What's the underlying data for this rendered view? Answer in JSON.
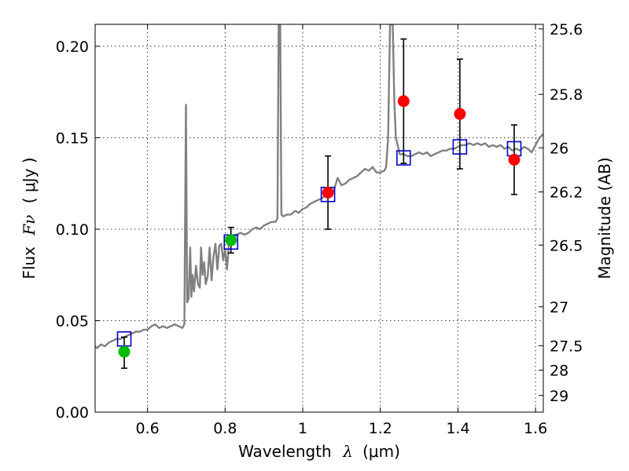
{
  "chart_data": {
    "type": "scatter",
    "xlabel_main": "Wavelength",
    "xlabel_symbol": "λ",
    "xlabel_unit": "(μm)",
    "ylabel_main": "Flux",
    "ylabel_symbol": "Fν",
    "ylabel_unit": "( μJy )",
    "ylabel_right": "Magnitude (AB)",
    "xlim": [
      0.465,
      1.62
    ],
    "ylim": [
      0.0,
      0.212
    ],
    "x_ticks": [
      0.6,
      0.8,
      1.0,
      1.2,
      1.4,
      1.6
    ],
    "x_tick_labels": [
      "0.6",
      "0.8",
      "1",
      "1.2",
      "1.4",
      "1.6"
    ],
    "y_ticks": [
      0.0,
      0.05,
      0.1,
      0.15,
      0.2
    ],
    "y_tick_labels": [
      "0.00",
      "0.05",
      "0.10",
      "0.15",
      "0.20"
    ],
    "right_ticks": [
      {
        "flux": 0.2095,
        "label": "25.6"
      },
      {
        "flux": 0.1737,
        "label": "25.8"
      },
      {
        "flux": 0.1445,
        "label": "26"
      },
      {
        "flux": 0.1204,
        "label": "26.2"
      },
      {
        "flux": 0.0913,
        "label": "26.5"
      },
      {
        "flux": 0.0576,
        "label": "27"
      },
      {
        "flux": 0.0363,
        "label": "27.5"
      },
      {
        "flux": 0.0229,
        "label": "28"
      },
      {
        "flux": 0.0091,
        "label": "29"
      }
    ],
    "grid": true,
    "colors": {
      "model": "#808080",
      "box": "#0000cc",
      "green": "#00bb00",
      "red": "#ff0000",
      "errorbar": "#000000"
    },
    "series": [
      {
        "name": "model spectrum",
        "style": "line",
        "points": [
          [
            0.465,
            0.036
          ],
          [
            0.47,
            0.035
          ],
          [
            0.48,
            0.037
          ],
          [
            0.49,
            0.036
          ],
          [
            0.5,
            0.038
          ],
          [
            0.51,
            0.039
          ],
          [
            0.52,
            0.04
          ],
          [
            0.53,
            0.04
          ],
          [
            0.54,
            0.041
          ],
          [
            0.55,
            0.042
          ],
          [
            0.56,
            0.043
          ],
          [
            0.57,
            0.044
          ],
          [
            0.58,
            0.044
          ],
          [
            0.59,
            0.045
          ],
          [
            0.6,
            0.045
          ],
          [
            0.61,
            0.047
          ],
          [
            0.62,
            0.048
          ],
          [
            0.63,
            0.046
          ],
          [
            0.64,
            0.047
          ],
          [
            0.65,
            0.046
          ],
          [
            0.66,
            0.047
          ],
          [
            0.67,
            0.048
          ],
          [
            0.68,
            0.047
          ],
          [
            0.69,
            0.046
          ],
          [
            0.695,
            0.048
          ],
          [
            0.699,
            0.168
          ],
          [
            0.702,
            0.06
          ],
          [
            0.706,
            0.062
          ],
          [
            0.71,
            0.09
          ],
          [
            0.713,
            0.063
          ],
          [
            0.716,
            0.075
          ],
          [
            0.72,
            0.066
          ],
          [
            0.725,
            0.08
          ],
          [
            0.73,
            0.07
          ],
          [
            0.735,
            0.068
          ],
          [
            0.738,
            0.09
          ],
          [
            0.742,
            0.075
          ],
          [
            0.746,
            0.082
          ],
          [
            0.75,
            0.07
          ],
          [
            0.755,
            0.074
          ],
          [
            0.76,
            0.09
          ],
          [
            0.765,
            0.072
          ],
          [
            0.77,
            0.085
          ],
          [
            0.775,
            0.092
          ],
          [
            0.78,
            0.078
          ],
          [
            0.785,
            0.091
          ],
          [
            0.79,
            0.092
          ],
          [
            0.795,
            0.083
          ],
          [
            0.8,
            0.089
          ],
          [
            0.805,
            0.078
          ],
          [
            0.81,
            0.094
          ],
          [
            0.815,
            0.092
          ],
          [
            0.82,
            0.095
          ],
          [
            0.83,
            0.097
          ],
          [
            0.84,
            0.098
          ],
          [
            0.85,
            0.097
          ],
          [
            0.86,
            0.098
          ],
          [
            0.87,
            0.1
          ],
          [
            0.88,
            0.101
          ],
          [
            0.89,
            0.1
          ],
          [
            0.9,
            0.102
          ],
          [
            0.91,
            0.103
          ],
          [
            0.92,
            0.104
          ],
          [
            0.93,
            0.104
          ],
          [
            0.935,
            0.106
          ],
          [
            0.938,
            0.212
          ],
          [
            0.942,
            0.212
          ],
          [
            0.945,
            0.108
          ],
          [
            0.95,
            0.107
          ],
          [
            0.96,
            0.108
          ],
          [
            0.97,
            0.108
          ],
          [
            0.98,
            0.11
          ],
          [
            0.99,
            0.109
          ],
          [
            1.0,
            0.111
          ],
          [
            1.01,
            0.112
          ],
          [
            1.02,
            0.114
          ],
          [
            1.03,
            0.115
          ],
          [
            1.04,
            0.116
          ],
          [
            1.05,
            0.117
          ],
          [
            1.06,
            0.119
          ],
          [
            1.07,
            0.12
          ],
          [
            1.08,
            0.121
          ],
          [
            1.09,
            0.128
          ],
          [
            1.1,
            0.124
          ],
          [
            1.11,
            0.125
          ],
          [
            1.12,
            0.127
          ],
          [
            1.13,
            0.128
          ],
          [
            1.14,
            0.129
          ],
          [
            1.15,
            0.131
          ],
          [
            1.16,
            0.133
          ],
          [
            1.17,
            0.132
          ],
          [
            1.18,
            0.134
          ],
          [
            1.19,
            0.131
          ],
          [
            1.2,
            0.131
          ],
          [
            1.21,
            0.132
          ],
          [
            1.215,
            0.134
          ],
          [
            1.22,
            0.15
          ],
          [
            1.225,
            0.212
          ],
          [
            1.232,
            0.212
          ],
          [
            1.236,
            0.17
          ],
          [
            1.24,
            0.15
          ],
          [
            1.25,
            0.141
          ],
          [
            1.26,
            0.141
          ],
          [
            1.27,
            0.14
          ],
          [
            1.28,
            0.14
          ],
          [
            1.29,
            0.141
          ],
          [
            1.3,
            0.142
          ],
          [
            1.31,
            0.141
          ],
          [
            1.32,
            0.142
          ],
          [
            1.33,
            0.14
          ],
          [
            1.34,
            0.141
          ],
          [
            1.35,
            0.142
          ],
          [
            1.36,
            0.143
          ],
          [
            1.37,
            0.143
          ],
          [
            1.38,
            0.144
          ],
          [
            1.39,
            0.144
          ],
          [
            1.4,
            0.145
          ],
          [
            1.41,
            0.146
          ],
          [
            1.42,
            0.146
          ],
          [
            1.43,
            0.147
          ],
          [
            1.44,
            0.146
          ],
          [
            1.45,
            0.147
          ],
          [
            1.46,
            0.146
          ],
          [
            1.47,
            0.147
          ],
          [
            1.48,
            0.145
          ],
          [
            1.49,
            0.146
          ],
          [
            1.5,
            0.145
          ],
          [
            1.51,
            0.146
          ],
          [
            1.52,
            0.144
          ],
          [
            1.53,
            0.145
          ],
          [
            1.54,
            0.143
          ],
          [
            1.55,
            0.144
          ],
          [
            1.56,
            0.143
          ],
          [
            1.57,
            0.145
          ],
          [
            1.58,
            0.144
          ],
          [
            1.59,
            0.142
          ],
          [
            1.6,
            0.146
          ],
          [
            1.61,
            0.15
          ],
          [
            1.62,
            0.152
          ]
        ]
      },
      {
        "name": "model synthetic photometry",
        "style": "open-square",
        "points": [
          [
            0.54,
            0.04
          ],
          [
            0.815,
            0.093
          ],
          [
            1.065,
            0.119
          ],
          [
            1.26,
            0.139
          ],
          [
            1.405,
            0.145
          ],
          [
            1.545,
            0.144
          ]
        ]
      },
      {
        "name": "observed (green)",
        "style": "filled-circle-green",
        "points": [
          {
            "x": 0.54,
            "y": 0.033,
            "ylo": 0.024,
            "yhi": 0.041
          },
          {
            "x": 0.815,
            "y": 0.094,
            "ylo": 0.087,
            "yhi": 0.101
          }
        ]
      },
      {
        "name": "observed (red)",
        "style": "filled-circle-red",
        "points": [
          {
            "x": 1.065,
            "y": 0.12,
            "ylo": 0.1,
            "yhi": 0.14
          },
          {
            "x": 1.26,
            "y": 0.17,
            "ylo": 0.136,
            "yhi": 0.204
          },
          {
            "x": 1.405,
            "y": 0.163,
            "ylo": 0.133,
            "yhi": 0.193
          },
          {
            "x": 1.545,
            "y": 0.138,
            "ylo": 0.119,
            "yhi": 0.157
          }
        ]
      }
    ]
  }
}
